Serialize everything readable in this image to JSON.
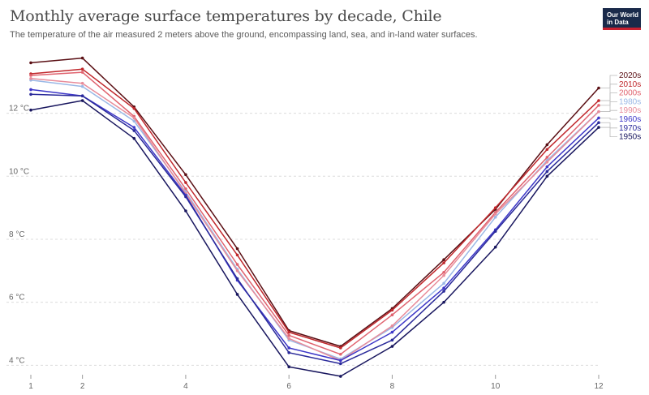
{
  "header": {
    "title": "Monthly average surface temperatures by decade, Chile",
    "subtitle": "The temperature of the air measured 2 meters above the ground, encompassing land, sea, and in-land water surfaces."
  },
  "logo": {
    "line1": "Our World",
    "line2": "in Data"
  },
  "chart_data": {
    "type": "line",
    "title": "Monthly average surface temperatures by decade, Chile",
    "subtitle": "The temperature of the air measured 2 meters above the ground, encompassing land, sea, and in-land water surfaces.",
    "x": [
      1,
      2,
      3,
      4,
      5,
      6,
      7,
      8,
      9,
      10,
      11,
      12
    ],
    "xticks": [
      1,
      2,
      4,
      6,
      8,
      10,
      12
    ],
    "xlim": [
      1,
      12
    ],
    "ylim": [
      3.7,
      14.1
    ],
    "yticks": [
      4,
      6,
      8,
      10,
      12
    ],
    "ytick_labels": [
      "4 °C",
      "6 °C",
      "8 °C",
      "10 °C",
      "12 °C"
    ],
    "grid": true,
    "legend_placement": "right",
    "series": [
      {
        "name": "2020s",
        "color": "#5a0f14",
        "values": [
          13.6,
          13.75,
          12.2,
          10.05,
          7.7,
          5.1,
          4.6,
          5.8,
          7.35,
          8.95,
          11.0,
          12.8
        ]
      },
      {
        "name": "2010s",
        "color": "#c0282c",
        "values": [
          13.25,
          13.4,
          12.15,
          9.8,
          7.5,
          5.05,
          4.55,
          5.75,
          7.25,
          9.0,
          10.85,
          12.4
        ]
      },
      {
        "name": "2000s",
        "color": "#e0636f",
        "values": [
          13.2,
          13.3,
          11.9,
          9.6,
          7.2,
          4.95,
          4.35,
          5.6,
          6.95,
          8.85,
          10.6,
          12.25
        ]
      },
      {
        "name": "1980s",
        "color": "#9ab8e6",
        "values": [
          13.05,
          12.85,
          11.75,
          9.5,
          7.05,
          4.8,
          4.2,
          5.2,
          6.6,
          8.7,
          10.5,
          12.05
        ]
      },
      {
        "name": "1990s",
        "color": "#e88c9a",
        "values": [
          13.1,
          12.95,
          11.85,
          9.45,
          7.0,
          4.85,
          4.15,
          5.25,
          6.85,
          8.8,
          10.45,
          12.05
        ]
      },
      {
        "name": "1960s",
        "color": "#3d37c8",
        "values": [
          12.75,
          12.55,
          11.55,
          9.4,
          6.7,
          4.55,
          4.15,
          5.05,
          6.45,
          8.3,
          10.3,
          11.85
        ]
      },
      {
        "name": "1970s",
        "color": "#2a2a9a",
        "values": [
          12.6,
          12.55,
          11.45,
          9.35,
          6.75,
          4.4,
          4.05,
          4.8,
          6.35,
          8.25,
          10.15,
          11.7
        ]
      },
      {
        "name": "1950s",
        "color": "#18165e",
        "values": [
          12.1,
          12.4,
          11.2,
          8.9,
          6.25,
          3.95,
          3.65,
          4.6,
          6.0,
          7.75,
          10.0,
          11.55
        ]
      }
    ]
  }
}
